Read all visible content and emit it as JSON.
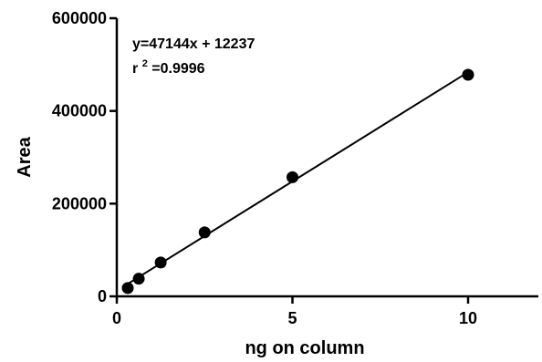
{
  "chart_data": {
    "type": "scatter",
    "title": "",
    "xlabel": "ng on column",
    "ylabel": "Area",
    "xlim": [
      0,
      12
    ],
    "ylim": [
      0,
      600000
    ],
    "x_ticks": [
      0,
      5,
      10
    ],
    "y_ticks": [
      0,
      200000,
      400000,
      600000
    ],
    "x_tick_labels": [
      "0",
      "5",
      "10"
    ],
    "y_tick_labels": [
      "0",
      "200000",
      "400000",
      "600000"
    ],
    "grid": false,
    "legend": "none",
    "series": [
      {
        "points": [
          {
            "x": 0.3125,
            "y": 18000
          },
          {
            "x": 0.625,
            "y": 38000
          },
          {
            "x": 1.25,
            "y": 73000
          },
          {
            "x": 2.5,
            "y": 138000
          },
          {
            "x": 5,
            "y": 257000
          },
          {
            "x": 10,
            "y": 478000
          }
        ]
      }
    ],
    "fit_line": {
      "slope": 47144,
      "intercept": 12237,
      "x_range": [
        0.3125,
        10
      ]
    },
    "annotations": {
      "equation": "y=47144x + 12237",
      "r2_prefix": "r",
      "r2_superscript": "2",
      "r2_value": "=0.9996"
    },
    "colors": {
      "marker": "#000000",
      "line": "#000000",
      "axis": "#000000"
    }
  }
}
